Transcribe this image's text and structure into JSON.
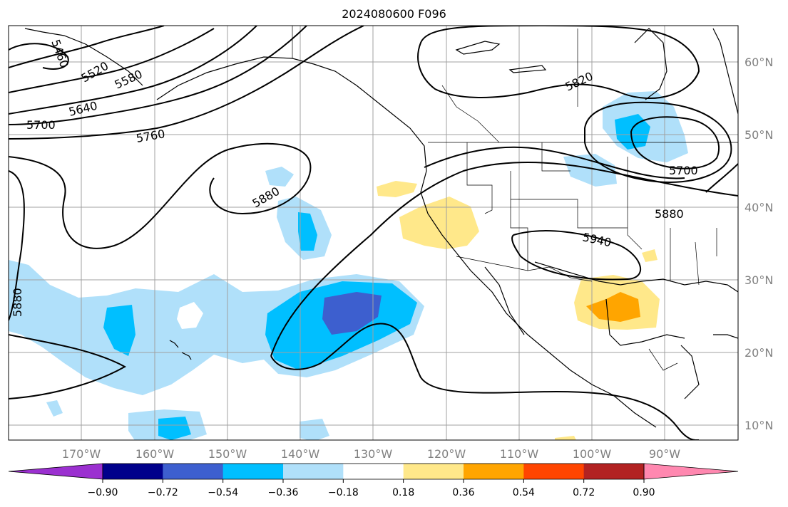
{
  "title": "2024080600 F096",
  "lat_labels": [
    "60°N",
    "50°N",
    "40°N",
    "30°N",
    "20°N",
    "10°N"
  ],
  "lon_labels": [
    "170°W",
    "160°W",
    "150°W",
    "140°W",
    "130°W",
    "120°W",
    "110°W",
    "100°W",
    "90°W"
  ],
  "colorbar": {
    "ticks": [
      "−0.90",
      "−0.72",
      "−0.54",
      "−0.36",
      "−0.18",
      "0.18",
      "0.36",
      "0.54",
      "0.72",
      "0.90"
    ],
    "colors": [
      "#9b30d0",
      "#00008b",
      "#3d5fcf",
      "#00bfff",
      "#b0e0fa",
      "#ffffff",
      "#ffe88a",
      "#ffa500",
      "#ff4500",
      "#b22222",
      "#ff88b0"
    ]
  },
  "contour_labels": [
    "5460",
    "5520",
    "5580",
    "5640",
    "5700",
    "5760",
    "5820",
    "5880",
    "5880",
    "5880",
    "5940",
    "5700"
  ]
}
